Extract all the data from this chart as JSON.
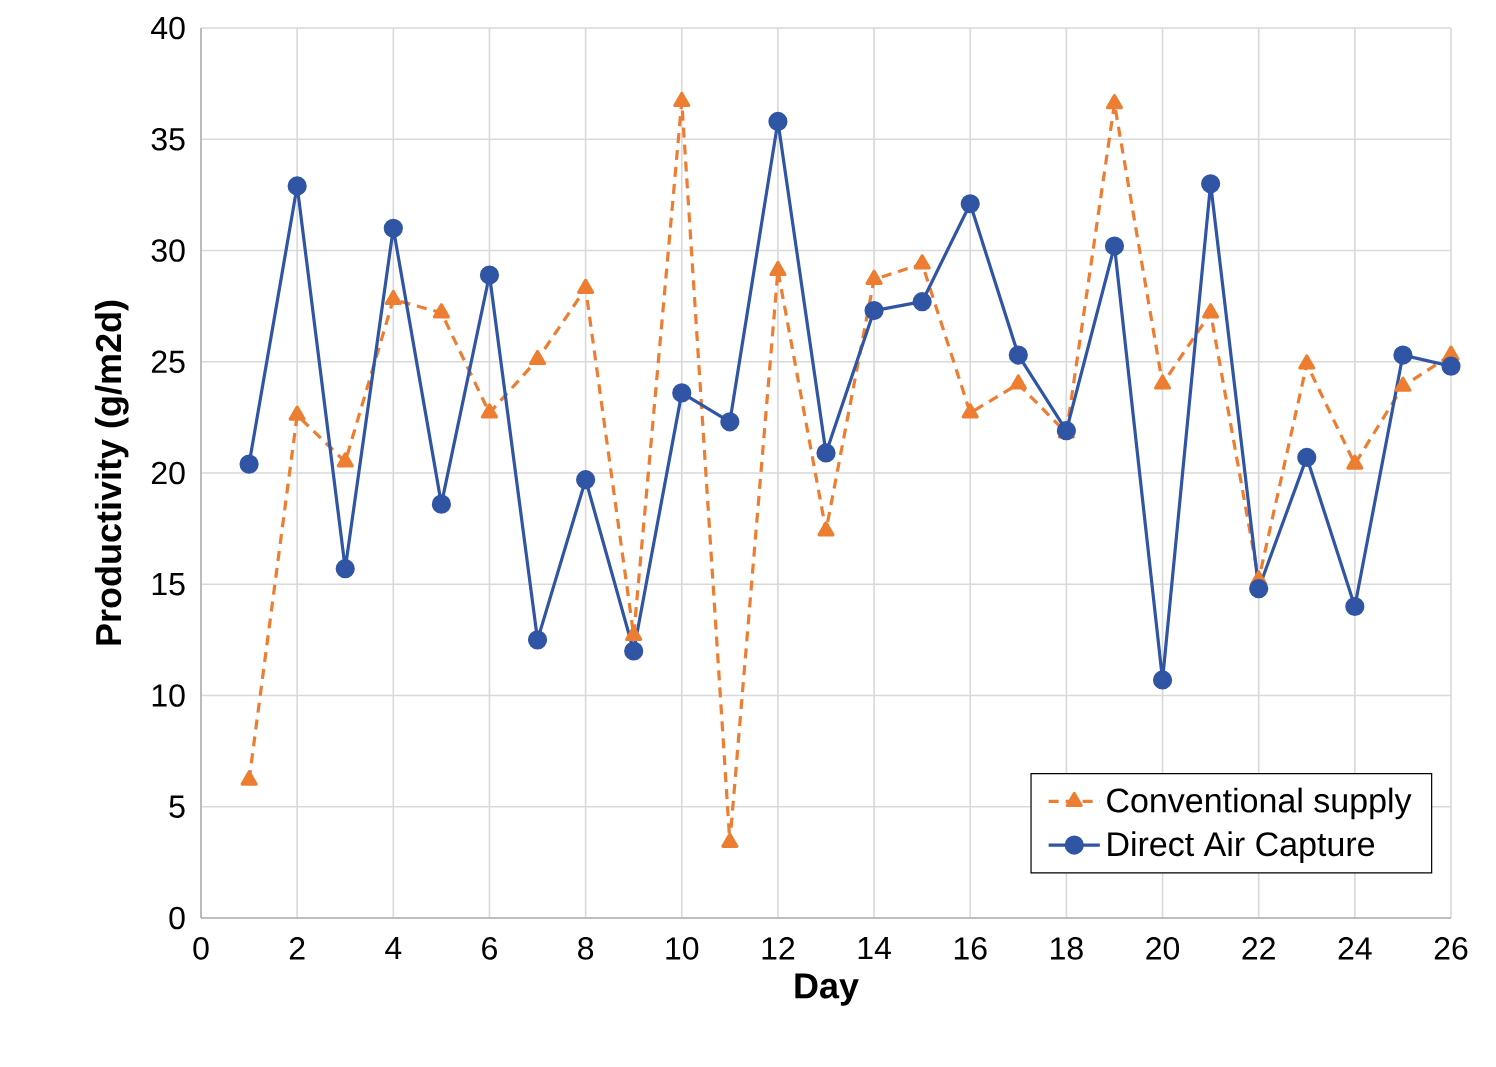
{
  "chart_data": {
    "type": "line",
    "xlabel": "Day",
    "ylabel": "Productivity (g/m2d)",
    "x": [
      1,
      2,
      3,
      4,
      5,
      6,
      7,
      8,
      9,
      10,
      11,
      12,
      13,
      14,
      15,
      16,
      17,
      18,
      19,
      20,
      21,
      22,
      23,
      24,
      25,
      26
    ],
    "series": [
      {
        "name": "Conventional supply",
        "color": "#ed7d31",
        "marker": "triangle",
        "line_style": "dashed",
        "values": [
          6.2,
          22.6,
          20.5,
          27.8,
          27.2,
          22.7,
          25.1,
          28.3,
          12.7,
          36.7,
          3.4,
          29.1,
          17.4,
          28.7,
          29.4,
          22.7,
          24.0,
          21.8,
          36.6,
          24.0,
          27.2,
          15.2,
          24.9,
          20.4,
          23.9,
          25.3
        ]
      },
      {
        "name": "Direct Air Capture",
        "color": "#2f55a4",
        "marker": "circle",
        "line_style": "solid",
        "values": [
          20.4,
          32.9,
          15.7,
          31.0,
          18.6,
          28.9,
          12.5,
          19.7,
          12.0,
          23.6,
          22.3,
          35.8,
          20.9,
          27.3,
          27.7,
          32.1,
          25.3,
          21.9,
          30.2,
          10.7,
          33.0,
          14.8,
          20.7,
          14.0,
          25.3,
          24.8
        ]
      }
    ],
    "xlim": [
      0,
      26
    ],
    "xticks": [
      0,
      2,
      4,
      6,
      8,
      10,
      12,
      14,
      16,
      18,
      20,
      22,
      24,
      26
    ],
    "ylim": [
      0,
      40
    ],
    "yticks": [
      0,
      5,
      10,
      15,
      20,
      25,
      30,
      35,
      40
    ],
    "grid": true,
    "legend": "bottom right"
  }
}
